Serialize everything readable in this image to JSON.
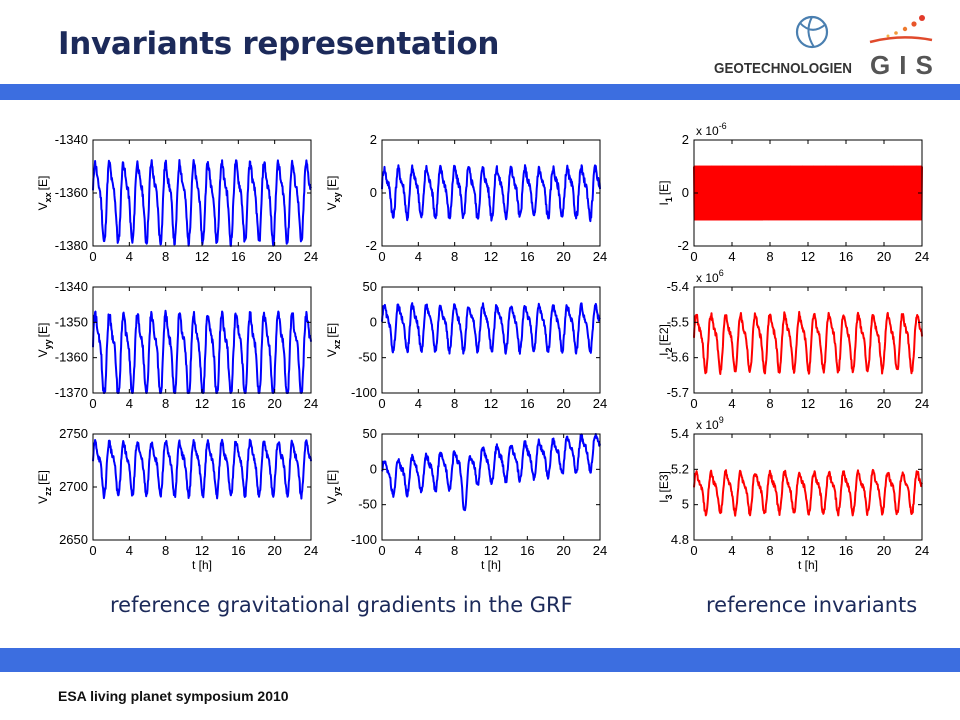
{
  "header": {
    "title": "Invariants representation"
  },
  "logos": {
    "geo_text": "GEOTECHNOLOGIEN",
    "gis_text": "GIS"
  },
  "captions": {
    "left": "reference gravitational gradients in the GRF",
    "right": "reference invariants"
  },
  "footer": {
    "text": "ESA living planet symposium 2010"
  },
  "colors": {
    "gradient_line": "#0000ff",
    "invariant_line": "#ff0000",
    "band": "#3c6ee0",
    "title": "#1c2a5a"
  },
  "chart_data": [
    {
      "id": "vxx",
      "type": "line",
      "ylabel": "V_xx [E]",
      "ylabel_main": "V",
      "ylabel_sub": "xx",
      "ylabel_unit": "[E]",
      "xlabel": "",
      "color": "#0000ff",
      "xlim": [
        0,
        24
      ],
      "xticks": [
        0,
        4,
        8,
        12,
        16,
        20,
        24
      ],
      "ylim": [
        -1380,
        -1340
      ],
      "yticks": [
        -1380,
        -1360,
        -1340
      ],
      "exponent": "",
      "signal": {
        "mean": -1362,
        "amplitude": 13,
        "period_h": 1.55,
        "noise": 1.5
      }
    },
    {
      "id": "vxy",
      "type": "line",
      "ylabel": "V_xy [E]",
      "ylabel_main": "V",
      "ylabel_sub": "xy",
      "ylabel_unit": "[E]",
      "xlabel": "",
      "color": "#0000ff",
      "xlim": [
        0,
        24
      ],
      "xticks": [
        0,
        4,
        8,
        12,
        16,
        20,
        24
      ],
      "ylim": [
        -2,
        2
      ],
      "yticks": [
        -2,
        0,
        2
      ],
      "exponent": "",
      "signal": {
        "mean": 0.1,
        "amplitude": 0.8,
        "period_h": 1.55,
        "noise": 0.15
      }
    },
    {
      "id": "i1",
      "type": "line",
      "ylabel": "I_1 [E]",
      "ylabel_main": "I",
      "ylabel_sub": "1",
      "ylabel_unit": "[E]",
      "xlabel": "",
      "color": "#ff0000",
      "xlim": [
        0,
        24
      ],
      "xticks": [
        0,
        4,
        8,
        12,
        16,
        20,
        24
      ],
      "ylim": [
        -2,
        2
      ],
      "yticks": [
        -2,
        0,
        2
      ],
      "exponent": "x 10-6",
      "exponent_base": "x 10",
      "exponent_power": "-6",
      "signal": {
        "mean": 0,
        "amplitude": 1,
        "period_h": 0.05,
        "noise": 0,
        "band": true
      }
    },
    {
      "id": "vyy",
      "type": "line",
      "ylabel": "V_yy [E]",
      "ylabel_main": "V",
      "ylabel_sub": "yy",
      "ylabel_unit": "[E]",
      "xlabel": "",
      "color": "#0000ff",
      "xlim": [
        0,
        24
      ],
      "xticks": [
        0,
        4,
        8,
        12,
        16,
        20,
        24
      ],
      "ylim": [
        -1370,
        -1340
      ],
      "yticks": [
        -1370,
        -1360,
        -1350,
        -1340
      ],
      "exponent": "",
      "signal": {
        "mean": -1358,
        "amplitude": 10,
        "period_h": 1.55,
        "noise": 1.2
      }
    },
    {
      "id": "vxz",
      "type": "line",
      "ylabel": "V_xz [E]",
      "ylabel_main": "V",
      "ylabel_sub": "xz",
      "ylabel_unit": "[E]",
      "xlabel": "",
      "color": "#0000ff",
      "xlim": [
        0,
        24
      ],
      "xticks": [
        0,
        4,
        8,
        12,
        16,
        20,
        24
      ],
      "ylim": [
        -100,
        50
      ],
      "yticks": [
        -100,
        -50,
        0,
        50
      ],
      "exponent": "",
      "signal": {
        "mean": -5,
        "amplitude": 28,
        "period_h": 1.55,
        "noise": 4
      }
    },
    {
      "id": "i2",
      "type": "line",
      "ylabel": "I_2 [E^2]",
      "ylabel_main": "I",
      "ylabel_sub": "2",
      "ylabel_unit": "[E2]",
      "xlabel": "",
      "color": "#ff0000",
      "xlim": [
        0,
        24
      ],
      "xticks": [
        0,
        4,
        8,
        12,
        16,
        20,
        24
      ],
      "ylim": [
        -5.7,
        -5.4
      ],
      "yticks": [
        -5.7,
        -5.6,
        -5.5,
        -5.4
      ],
      "exponent": "x 106",
      "exponent_base": "x 10",
      "exponent_power": "6",
      "signal": {
        "mean": -5.55,
        "amplitude": 0.07,
        "period_h": 1.55,
        "noise": 0.008
      }
    },
    {
      "id": "vzz",
      "type": "line",
      "ylabel": "V_zz [E]",
      "ylabel_main": "V",
      "ylabel_sub": "zz",
      "ylabel_unit": "[E]",
      "xlabel": "t [h]",
      "color": "#0000ff",
      "xlim": [
        0,
        24
      ],
      "xticks": [
        0,
        4,
        8,
        12,
        16,
        20,
        24
      ],
      "ylim": [
        2650,
        2750
      ],
      "yticks": [
        2650,
        2700,
        2750
      ],
      "exponent": "",
      "signal": {
        "mean": 2720,
        "amplitude": 22,
        "period_h": 1.55,
        "noise": 3
      }
    },
    {
      "id": "vyz",
      "type": "line",
      "ylabel": "V_yz [E]",
      "ylabel_main": "V",
      "ylabel_sub": "yz",
      "ylabel_unit": "[E]",
      "xlabel": "t [h]",
      "color": "#0000ff",
      "xlim": [
        0,
        24
      ],
      "xticks": [
        0,
        4,
        8,
        12,
        16,
        20,
        24
      ],
      "ylim": [
        -100,
        50
      ],
      "yticks": [
        -100,
        -50,
        0,
        50
      ],
      "exponent": "",
      "signal": {
        "mean": 5,
        "amplitude": 22,
        "period_h": 1.55,
        "noise": 4,
        "trend": true
      }
    },
    {
      "id": "i3",
      "type": "line",
      "ylabel": "I_3 [E^3]",
      "ylabel_main": "I",
      "ylabel_sub": "3",
      "ylabel_unit": "[E3]",
      "xlabel": "t [h]",
      "color": "#ff0000",
      "xlim": [
        0,
        24
      ],
      "xticks": [
        0,
        4,
        8,
        12,
        16,
        20,
        24
      ],
      "ylim": [
        4.8,
        5.4
      ],
      "yticks": [
        4.8,
        5,
        5.2,
        5.4
      ],
      "exponent": "x 109",
      "exponent_base": "x 10",
      "exponent_power": "9",
      "signal": {
        "mean": 5.08,
        "amplitude": 0.1,
        "period_h": 1.55,
        "noise": 0.015
      }
    }
  ]
}
